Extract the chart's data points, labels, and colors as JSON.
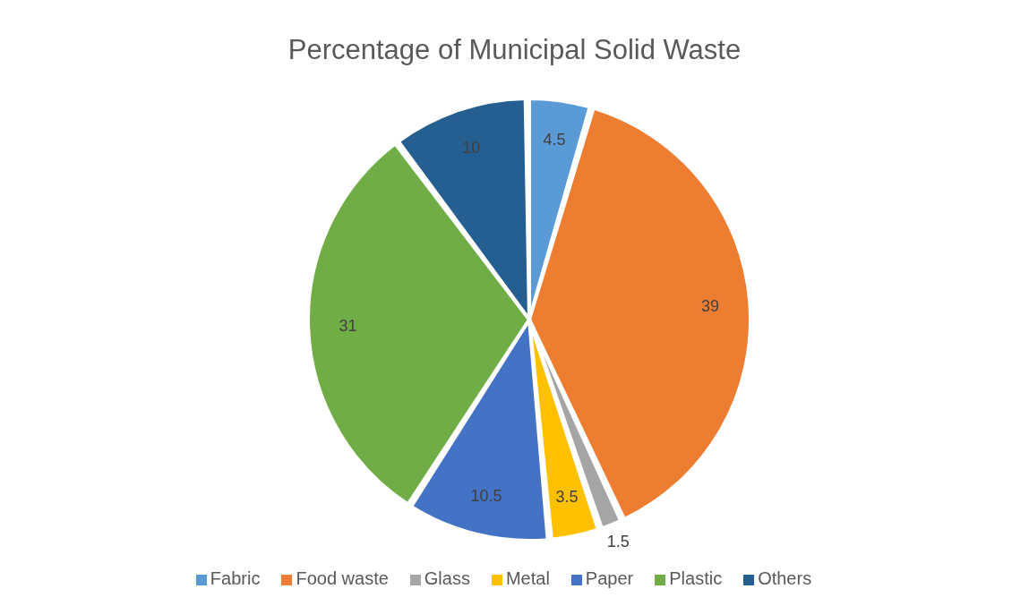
{
  "chart_data": {
    "type": "pie",
    "title": "Percentage of Municipal Solid Waste",
    "categories": [
      "Fabric",
      "Food waste",
      "Glass",
      "Metal",
      "Paper",
      "Plastic",
      "Others"
    ],
    "values": [
      4.5,
      39,
      1.5,
      3.5,
      10.5,
      31,
      10
    ],
    "colors": [
      "#5b9bd5",
      "#ed7d31",
      "#a5a5a5",
      "#ffc000",
      "#4472c4",
      "#70ad47",
      "#255e91"
    ],
    "data_labels": true,
    "legend": "bottom"
  }
}
